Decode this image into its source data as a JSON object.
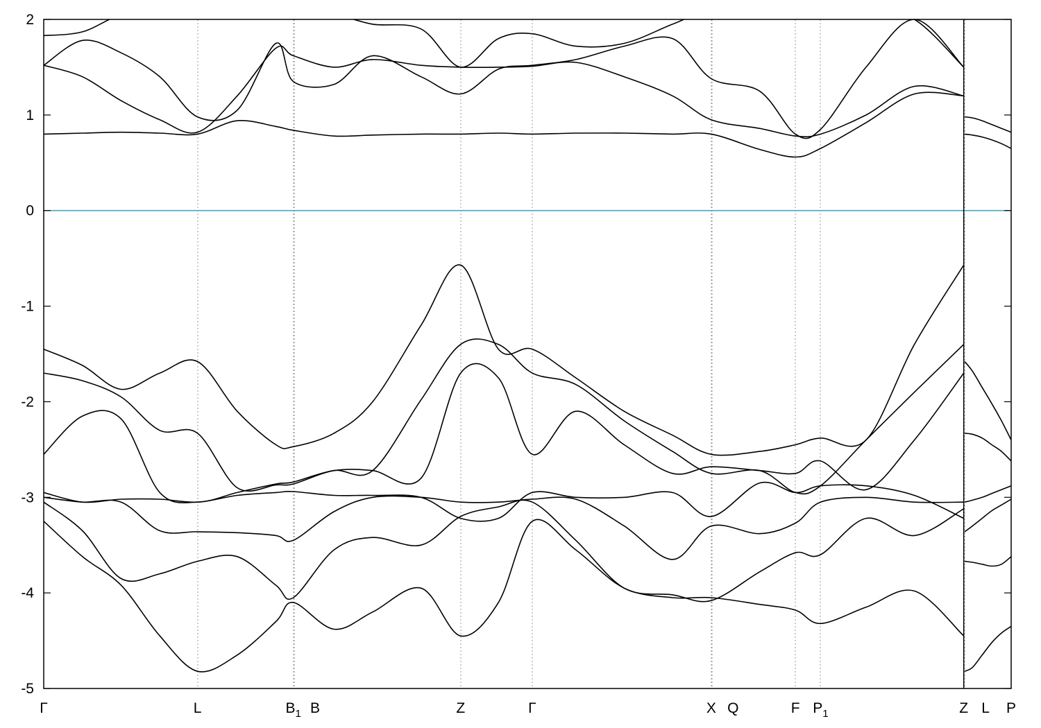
{
  "chart_data": {
    "type": "line",
    "title": "",
    "xlabel": "",
    "ylabel": "",
    "ylim": [
      -5,
      2
    ],
    "yticks": [
      -5,
      -4,
      -3,
      -2,
      -1,
      0,
      1,
      2
    ],
    "fermi_level": 0,
    "grid": "vertical dashed lines at high-symmetry points",
    "colors": {
      "bands": "#000000",
      "fermi": "#4aa3c4",
      "grid": "#9a9a9a"
    },
    "kpoints": [
      {
        "label": "Γ",
        "sub": "",
        "x": 0
      },
      {
        "label": "L",
        "sub": "",
        "x": 0.159
      },
      {
        "label": "B",
        "sub": "1",
        "x": 0.258
      },
      {
        "label": "B",
        "sub": "",
        "x": 0.259
      },
      {
        "label": "Z",
        "sub": "",
        "x": 0.431
      },
      {
        "label": "Γ",
        "sub": "",
        "x": 0.505
      },
      {
        "label": "X",
        "sub": "",
        "x": 0.69
      },
      {
        "label": "Q",
        "sub": "",
        "x": 0.691
      },
      {
        "label": "F",
        "sub": "",
        "x": 0.777
      },
      {
        "label": "P",
        "sub": "1",
        "x": 0.803
      },
      {
        "label": "Z",
        "sub": "",
        "x": 0.951
      },
      {
        "label": "L",
        "sub": "",
        "x": 0.952
      },
      {
        "label": "P",
        "sub": "",
        "x": 1.0
      }
    ],
    "segment_breaks": [
      0.951
    ],
    "series": [
      {
        "segment": 0,
        "x": [
          0,
          0.04,
          0.08,
          0.12,
          0.159,
          0.2,
          0.24,
          0.258,
          0.3,
          0.34,
          0.39,
          0.431,
          0.47,
          0.505,
          0.55,
          0.6,
          0.65,
          0.69,
          0.74,
          0.777,
          0.803,
          0.85,
          0.9,
          0.951
        ],
        "y": [
          -3.25,
          -3.62,
          -3.92,
          -4.45,
          -4.82,
          -4.65,
          -4.3,
          -4.1,
          -4.38,
          -4.2,
          -3.95,
          -4.45,
          -4.1,
          -3.25,
          -3.55,
          -3.95,
          -4.05,
          -4.05,
          -4.12,
          -4.18,
          -4.32,
          -4.15,
          -3.98,
          -4.45
        ]
      },
      {
        "segment": 0,
        "x": [
          0,
          0.04,
          0.08,
          0.12,
          0.159,
          0.2,
          0.24,
          0.258,
          0.3,
          0.34,
          0.39,
          0.431,
          0.47,
          0.505,
          0.55,
          0.6,
          0.65,
          0.69,
          0.74,
          0.777,
          0.803,
          0.85,
          0.9,
          0.951
        ],
        "y": [
          -3.05,
          -3.35,
          -3.85,
          -3.8,
          -3.67,
          -3.62,
          -3.92,
          -4.05,
          -3.55,
          -3.42,
          -3.5,
          -3.2,
          -3.1,
          -3.05,
          -3.45,
          -3.95,
          -4.02,
          -4.08,
          -3.78,
          -3.58,
          -3.6,
          -3.22,
          -3.4,
          -3.12
        ]
      },
      {
        "segment": 0,
        "x": [
          0,
          0.04,
          0.08,
          0.12,
          0.159,
          0.2,
          0.24,
          0.258,
          0.3,
          0.34,
          0.39,
          0.431,
          0.47,
          0.505,
          0.55,
          0.6,
          0.65,
          0.69,
          0.74,
          0.777,
          0.803,
          0.85,
          0.9,
          0.951
        ],
        "y": [
          -3.0,
          -3.05,
          -3.05,
          -3.35,
          -3.36,
          -3.37,
          -3.4,
          -3.45,
          -3.15,
          -3.0,
          -3.0,
          -3.05,
          -3.05,
          -3.02,
          -3.02,
          -3.3,
          -3.65,
          -3.3,
          -3.38,
          -3.27,
          -3.05,
          -3.0,
          -3.05,
          -3.05
        ]
      },
      {
        "segment": 0,
        "x": [
          0,
          0.04,
          0.08,
          0.12,
          0.159,
          0.2,
          0.24,
          0.258,
          0.3,
          0.34,
          0.39,
          0.431,
          0.47,
          0.505,
          0.55,
          0.6,
          0.65,
          0.69,
          0.74,
          0.777,
          0.803,
          0.85,
          0.9,
          0.951
        ],
        "y": [
          -2.95,
          -3.05,
          -3.02,
          -3.02,
          -3.05,
          -2.98,
          -2.95,
          -2.94,
          -2.98,
          -2.98,
          -3.0,
          -3.22,
          -3.22,
          -2.95,
          -3.0,
          -3.0,
          -2.95,
          -3.2,
          -2.85,
          -2.95,
          -2.88,
          -2.88,
          -2.98,
          -3.22
        ]
      },
      {
        "segment": 0,
        "x": [
          0,
          0.04,
          0.08,
          0.12,
          0.159,
          0.2,
          0.24,
          0.258,
          0.3,
          0.34,
          0.39,
          0.431,
          0.47,
          0.505,
          0.55,
          0.6,
          0.65,
          0.69,
          0.74,
          0.777,
          0.803,
          0.85,
          0.9,
          0.951
        ],
        "y": [
          -2.55,
          -2.15,
          -2.18,
          -2.95,
          -3.05,
          -2.95,
          -2.86,
          -2.84,
          -2.72,
          -2.72,
          -2.8,
          -1.7,
          -1.75,
          -2.55,
          -2.1,
          -2.45,
          -2.75,
          -2.68,
          -2.72,
          -2.75,
          -2.62,
          -2.92,
          -2.4,
          -1.7
        ]
      },
      {
        "segment": 0,
        "x": [
          0,
          0.04,
          0.08,
          0.12,
          0.159,
          0.2,
          0.24,
          0.258,
          0.3,
          0.34,
          0.39,
          0.431,
          0.47,
          0.505,
          0.55,
          0.6,
          0.65,
          0.69,
          0.74,
          0.777,
          0.803,
          0.85,
          0.9,
          0.951
        ],
        "y": [
          -1.7,
          -1.78,
          -1.95,
          -2.3,
          -2.33,
          -2.9,
          -2.87,
          -2.86,
          -2.72,
          -2.72,
          -1.98,
          -1.4,
          -1.4,
          -1.7,
          -1.82,
          -2.2,
          -2.52,
          -2.75,
          -2.72,
          -2.95,
          -2.88,
          -2.4,
          -1.9,
          -1.4
        ]
      },
      {
        "segment": 0,
        "x": [
          0,
          0.04,
          0.08,
          0.12,
          0.159,
          0.2,
          0.24,
          0.258,
          0.3,
          0.34,
          0.39,
          0.431,
          0.47,
          0.505,
          0.55,
          0.6,
          0.65,
          0.69,
          0.74,
          0.777,
          0.803,
          0.85,
          0.9,
          0.951
        ],
        "y": [
          -1.45,
          -1.62,
          -1.87,
          -1.7,
          -1.58,
          -2.1,
          -2.45,
          -2.47,
          -2.33,
          -2.0,
          -1.2,
          -0.57,
          -1.45,
          -1.45,
          -1.75,
          -2.1,
          -2.35,
          -2.55,
          -2.52,
          -2.45,
          -2.38,
          -2.4,
          -1.4,
          -0.57
        ]
      },
      {
        "segment": 0,
        "x": [
          0,
          0.04,
          0.08,
          0.12,
          0.159,
          0.2,
          0.24,
          0.258,
          0.3,
          0.34,
          0.39,
          0.431,
          0.47,
          0.505,
          0.55,
          0.6,
          0.65,
          0.69,
          0.74,
          0.777,
          0.803,
          0.85,
          0.9,
          0.951
        ],
        "y": [
          0.8,
          0.81,
          0.82,
          0.81,
          0.8,
          0.94,
          0.88,
          0.84,
          0.78,
          0.79,
          0.8,
          0.8,
          0.81,
          0.8,
          0.81,
          0.81,
          0.8,
          0.8,
          0.64,
          0.56,
          0.65,
          0.92,
          1.22,
          1.2
        ]
      },
      {
        "segment": 0,
        "x": [
          0,
          0.04,
          0.08,
          0.12,
          0.159,
          0.2,
          0.24,
          0.258,
          0.3,
          0.34,
          0.39,
          0.431,
          0.47,
          0.505,
          0.55,
          0.6,
          0.65,
          0.69,
          0.74,
          0.777,
          0.803,
          0.85,
          0.9,
          0.951
        ],
        "y": [
          1.52,
          1.4,
          1.15,
          0.95,
          0.82,
          1.2,
          1.7,
          1.62,
          1.5,
          1.58,
          1.52,
          1.5,
          1.5,
          1.51,
          1.55,
          1.4,
          1.2,
          0.95,
          0.86,
          0.78,
          0.8,
          1.0,
          1.3,
          1.2
        ]
      },
      {
        "segment": 0,
        "x": [
          0,
          0.04,
          0.08,
          0.12,
          0.159,
          0.2,
          0.24,
          0.258,
          0.3,
          0.34,
          0.39,
          0.431,
          0.47,
          0.505,
          0.55,
          0.6,
          0.65,
          0.69,
          0.74,
          0.777,
          0.803,
          0.85,
          0.9,
          0.951
        ],
        "y": [
          1.52,
          1.78,
          1.65,
          1.4,
          0.98,
          1.05,
          1.75,
          1.35,
          1.32,
          1.62,
          1.4,
          1.22,
          1.48,
          1.52,
          1.58,
          1.72,
          1.8,
          1.38,
          1.25,
          0.8,
          0.85,
          1.5,
          2.0,
          1.5
        ]
      },
      {
        "segment": 0,
        "x": [
          0,
          0.04,
          0.08,
          0.12,
          0.159,
          0.2,
          0.24,
          0.258,
          0.3,
          0.34,
          0.39,
          0.431,
          0.47,
          0.505,
          0.55,
          0.6,
          0.65,
          0.69,
          0.74,
          0.777,
          0.803,
          0.85,
          0.9,
          0.951
        ],
        "y": [
          1.83,
          1.87,
          2.05,
          2.1,
          2.1,
          2.1,
          2.05,
          2.05,
          2.05,
          1.95,
          1.9,
          1.5,
          1.8,
          1.85,
          1.72,
          1.75,
          1.95,
          2.1,
          2.1,
          2.1,
          2.1,
          2.1,
          2.0,
          1.5
        ]
      },
      {
        "segment": 1,
        "x": [
          0.952,
          0.96,
          0.97,
          0.98,
          0.99,
          1.0
        ],
        "y": [
          -4.82,
          -4.78,
          -4.65,
          -4.52,
          -4.42,
          -4.35
        ]
      },
      {
        "segment": 1,
        "x": [
          0.952,
          0.96,
          0.97,
          0.98,
          0.99,
          1.0
        ],
        "y": [
          -3.67,
          -3.68,
          -3.7,
          -3.72,
          -3.7,
          -3.62
        ]
      },
      {
        "segment": 1,
        "x": [
          0.952,
          0.96,
          0.97,
          0.98,
          0.99,
          1.0
        ],
        "y": [
          -3.36,
          -3.3,
          -3.22,
          -3.14,
          -3.08,
          -3.02
        ]
      },
      {
        "segment": 1,
        "x": [
          0.952,
          0.96,
          0.97,
          0.98,
          0.99,
          1.0
        ],
        "y": [
          -3.05,
          -3.03,
          -3.0,
          -2.96,
          -2.92,
          -2.88
        ]
      },
      {
        "segment": 1,
        "x": [
          0.952,
          0.96,
          0.97,
          0.98,
          0.99,
          1.0
        ],
        "y": [
          -2.33,
          -2.34,
          -2.38,
          -2.45,
          -2.52,
          -2.62
        ]
      },
      {
        "segment": 1,
        "x": [
          0.952,
          0.96,
          0.97,
          0.98,
          0.99,
          1.0
        ],
        "y": [
          -1.58,
          -1.68,
          -1.85,
          -2.02,
          -2.2,
          -2.4
        ]
      },
      {
        "segment": 1,
        "x": [
          0.952,
          0.96,
          0.97,
          0.98,
          0.99,
          1.0
        ],
        "y": [
          0.8,
          0.79,
          0.77,
          0.74,
          0.7,
          0.65
        ]
      },
      {
        "segment": 1,
        "x": [
          0.952,
          0.96,
          0.97,
          0.98,
          0.99,
          1.0
        ],
        "y": [
          0.98,
          0.97,
          0.94,
          0.9,
          0.86,
          0.82
        ]
      }
    ]
  }
}
